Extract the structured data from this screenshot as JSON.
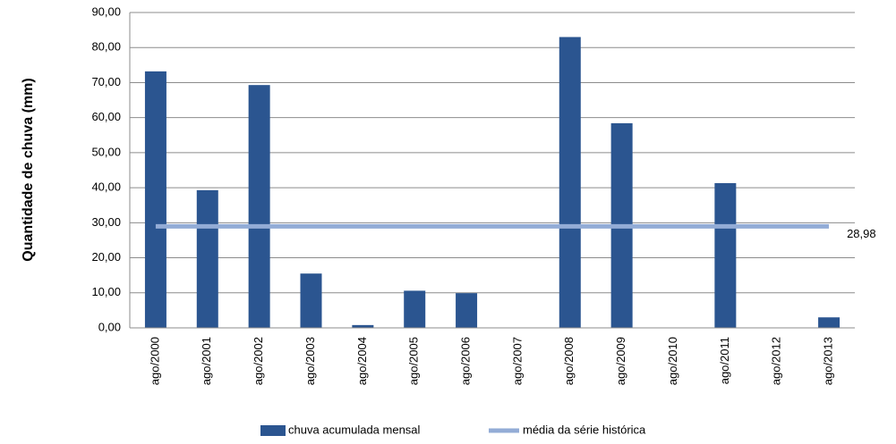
{
  "chart_data": {
    "type": "bar",
    "y_label": "Quantidade de chuva (mm)",
    "categories": [
      "ago/2000",
      "ago/2001",
      "ago/2002",
      "ago/2003",
      "ago/2004",
      "ago/2005",
      "ago/2006",
      "ago/2007",
      "ago/2008",
      "ago/2009",
      "ago/2010",
      "ago/2011",
      "ago/2012",
      "ago/2013"
    ],
    "series": [
      {
        "name": "chuva acumulada mensal",
        "type": "bar",
        "color": "#2b5590",
        "values": [
          73.2,
          39.3,
          69.3,
          15.5,
          0.8,
          10.6,
          9.9,
          0,
          83.0,
          58.4,
          0,
          41.3,
          0,
          3.0
        ]
      },
      {
        "name": "média da série histórica",
        "type": "line",
        "color": "#93acd6",
        "values": [
          28.98,
          28.98,
          28.98,
          28.98,
          28.98,
          28.98,
          28.98,
          28.98,
          28.98,
          28.98,
          28.98,
          28.98,
          28.98,
          28.98
        ],
        "value_labels": [
          null,
          null,
          null,
          null,
          null,
          null,
          null,
          null,
          null,
          null,
          null,
          null,
          null,
          "28,98"
        ]
      }
    ],
    "ylim": [
      0,
      90
    ],
    "yticks": [
      {
        "value": 0,
        "label": "0,00"
      },
      {
        "value": 10,
        "label": "10,00"
      },
      {
        "value": 20,
        "label": "20,00"
      },
      {
        "value": 30,
        "label": "30,00"
      },
      {
        "value": 40,
        "label": "40,00"
      },
      {
        "value": 50,
        "label": "50,00"
      },
      {
        "value": 60,
        "label": "60,00"
      },
      {
        "value": 70,
        "label": "70,00"
      },
      {
        "value": 80,
        "label": "80,00"
      },
      {
        "value": 90,
        "label": "90,00"
      }
    ],
    "grid": true,
    "legend": "bottom"
  }
}
